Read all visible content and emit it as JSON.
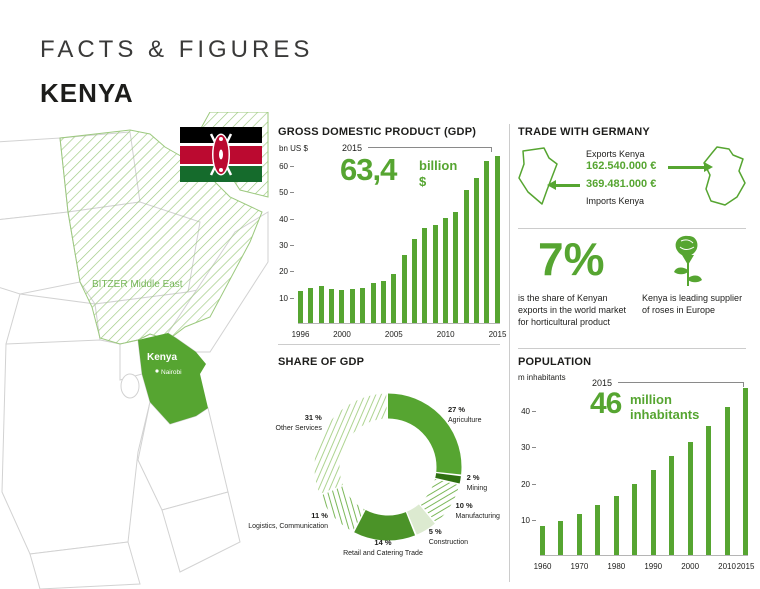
{
  "header": {
    "title": "FACTS & FIGURES",
    "subtitle": "KENYA"
  },
  "map": {
    "region_label": "BITZER Middle East",
    "country_label": "Kenya",
    "city_label": "Nairobi"
  },
  "gdp_section": {
    "title": "GROSS DOMESTIC PRODUCT (GDP)",
    "unit_label": "bn US $",
    "callout_year": "2015",
    "callout_value": "63,4",
    "callout_unit": "billion",
    "callout_currency": "$"
  },
  "trade_section": {
    "title": "TRADE WITH GERMANY",
    "exports_label": "Exports Kenya",
    "exports_value": "162.540.000 €",
    "imports_value": "369.481.000 €",
    "imports_label": "Imports Kenya"
  },
  "horticulture_section": {
    "percent": "7%",
    "text": "is the share of Kenyan exports in the world market for horticultural product",
    "rose_text": "Kenya is leading supplier of roses in Europe"
  },
  "share_section": {
    "title": "SHARE OF GDP"
  },
  "population_section": {
    "title": "POPULATION",
    "unit_label": "m inhabitants",
    "callout_year": "2015",
    "callout_value": "46",
    "callout_unit_line1": "million",
    "callout_unit_line2": "inhabitants"
  },
  "colors": {
    "green": "#56a531",
    "green_mid": "#4b9328",
    "green_dark": "#2f7012",
    "green_pale": "#dcead0",
    "hatch_line": "#7cb85a",
    "hatch_line_light": "#aed491",
    "map_hatch_line": "#9cc97e",
    "map_border": "#d2d2d2",
    "flag_black": "#000000",
    "flag_red": "#bb0a30",
    "flag_green": "#156b2c",
    "divider": "#cccccc",
    "axis": "#8a8a8a"
  },
  "chart_data": [
    {
      "id": "gdp",
      "type": "bar",
      "title": "GROSS DOMESTIC PRODUCT (GDP)",
      "ylabel": "bn US $",
      "categories": [
        1996,
        1997,
        1998,
        1999,
        2000,
        2001,
        2002,
        2003,
        2004,
        2005,
        2006,
        2007,
        2008,
        2009,
        2010,
        2011,
        2012,
        2013,
        2014,
        2015
      ],
      "values": [
        12.0,
        13.1,
        14.1,
        12.9,
        12.7,
        13.0,
        13.1,
        15.0,
        16.1,
        18.7,
        25.8,
        31.9,
        35.9,
        37.0,
        40.0,
        42.0,
        50.4,
        55.1,
        61.4,
        63.4
      ],
      "yticks": [
        10,
        20,
        30,
        40,
        50,
        60
      ],
      "ylim": [
        0,
        66
      ],
      "xticks": [
        "1996",
        "2000",
        "2005",
        "2010",
        "2015"
      ],
      "highlight": {
        "year": "2015",
        "value": 63.4,
        "label": "63,4 billion $"
      }
    },
    {
      "id": "share_of_gdp",
      "type": "pie",
      "title": "SHARE OF GDP",
      "segments": [
        {
          "label": "Agriculture",
          "pct": 27,
          "style": "solid"
        },
        {
          "label": "Mining",
          "pct": 2,
          "style": "dark"
        },
        {
          "label": "Manufacturing",
          "pct": 10,
          "style": "hatch"
        },
        {
          "label": "Construction",
          "pct": 5,
          "style": "pale"
        },
        {
          "label": "Retail and Catering Trade",
          "pct": 14,
          "style": "solid2"
        },
        {
          "label": "Logistics, Communication",
          "pct": 11,
          "style": "hatch"
        },
        {
          "label": "Other Services",
          "pct": 31,
          "style": "hatch2"
        }
      ]
    },
    {
      "id": "population",
      "type": "bar",
      "title": "POPULATION",
      "ylabel": "m inhabitants",
      "categories": [
        "1960",
        "1965",
        "1970",
        "1975",
        "1980",
        "1985",
        "1990",
        "1995",
        "2000",
        "2005",
        "2010",
        "2015"
      ],
      "values": [
        8.1,
        9.5,
        11.3,
        13.7,
        16.3,
        19.7,
        23.4,
        27.4,
        31.3,
        35.6,
        40.9,
        46.0
      ],
      "yticks": [
        10,
        20,
        30,
        40
      ],
      "ylim": [
        0,
        48
      ],
      "xticks": [
        "1960",
        "1970",
        "1980",
        "1990",
        "2000",
        "2010",
        "2015"
      ],
      "highlight": {
        "year": "2015",
        "value": 46,
        "label": "46 million inhabitants"
      }
    }
  ]
}
